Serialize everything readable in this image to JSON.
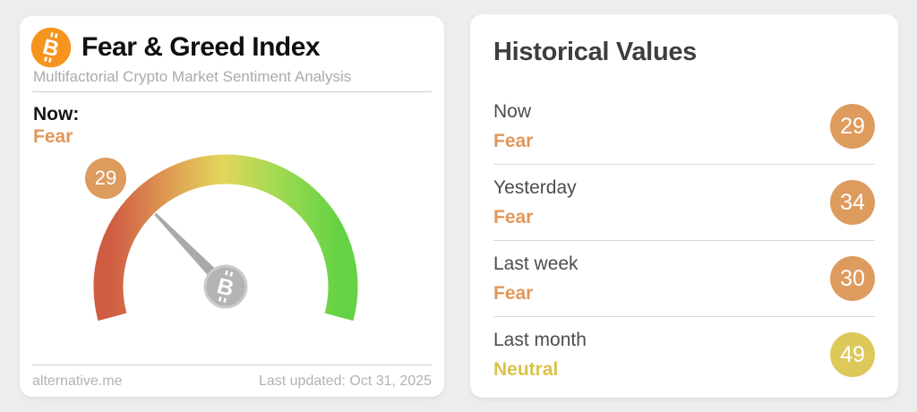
{
  "chart_data": {
    "type": "gauge",
    "title": "Fear & Greed Index",
    "value": 29,
    "classification": "Fear",
    "range": [
      0,
      100
    ],
    "arc_degrees": 210,
    "gradient": [
      "#cf5d43",
      "#dd9352",
      "#e5d55c",
      "#a2da52",
      "#64d244"
    ],
    "historical": [
      {
        "label": "Now",
        "value": 29,
        "classification": "Fear"
      },
      {
        "label": "Yesterday",
        "value": 34,
        "classification": "Fear"
      },
      {
        "label": "Last week",
        "value": 30,
        "classification": "Fear"
      },
      {
        "label": "Last month",
        "value": 49,
        "classification": "Neutral"
      }
    ]
  },
  "left_card": {
    "title": "Fear & Greed Index",
    "subtitle": "Multifactorial Crypto Market Sentiment Analysis",
    "now_label": "Now:",
    "now_classification": "Fear",
    "now_color": "#e2975a",
    "gauge_badge_value": "29",
    "gauge_badge_color": "#dd9b5e",
    "footer_source": "alternative.me",
    "footer_updated": "Last updated: Oct 31, 2025"
  },
  "right_card": {
    "title": "Historical Values",
    "rows": [
      {
        "label": "Now",
        "classification": "Fear",
        "value": "29",
        "text_color": "#e2975a",
        "badge_color": "#dd9b5e"
      },
      {
        "label": "Yesterday",
        "classification": "Fear",
        "value": "34",
        "text_color": "#e2975a",
        "badge_color": "#dd9b5e"
      },
      {
        "label": "Last week",
        "classification": "Fear",
        "value": "30",
        "text_color": "#e2975a",
        "badge_color": "#dd9b5e"
      },
      {
        "label": "Last month",
        "classification": "Neutral",
        "value": "49",
        "text_color": "#d9c34b",
        "badge_color": "#dcc95a"
      }
    ]
  },
  "icons": {
    "bitcoin": "bitcoin-icon"
  }
}
